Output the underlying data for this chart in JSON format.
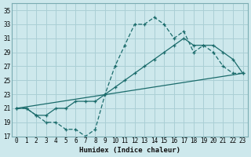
{
  "xlabel": "Humidex (Indice chaleur)",
  "bg_color": "#cde8ec",
  "grid_color": "#aacfd5",
  "line_color": "#1a6b6b",
  "xlim": [
    -0.5,
    23.5
  ],
  "ylim": [
    17,
    36
  ],
  "xticks": [
    0,
    1,
    2,
    3,
    4,
    5,
    6,
    7,
    8,
    9,
    10,
    11,
    12,
    13,
    14,
    15,
    16,
    17,
    18,
    19,
    20,
    21,
    22,
    23
  ],
  "yticks": [
    17,
    19,
    21,
    23,
    25,
    27,
    29,
    31,
    33,
    35
  ],
  "curve1_x": [
    0,
    1,
    2,
    3,
    4,
    5,
    6,
    7,
    8,
    9,
    10,
    11,
    12,
    13,
    14,
    15,
    16,
    17,
    18,
    19,
    20,
    21,
    22,
    23
  ],
  "curve1_y": [
    21,
    21,
    20,
    19,
    19,
    18,
    18,
    17,
    18,
    23,
    27,
    30,
    33,
    33,
    34,
    33,
    31,
    32,
    29,
    30,
    29,
    27,
    26,
    26
  ],
  "curve2_x": [
    0,
    1,
    2,
    3,
    4,
    5,
    6,
    7,
    8,
    9,
    10,
    11,
    12,
    13,
    14,
    15,
    16,
    17,
    18,
    19,
    20,
    21,
    22,
    23
  ],
  "curve2_y": [
    21,
    21,
    20,
    20,
    21,
    21,
    22,
    22,
    22,
    23,
    24,
    25,
    26,
    27,
    28,
    29,
    30,
    31,
    30,
    30,
    30,
    29,
    28,
    26
  ],
  "line3_x": [
    0,
    23
  ],
  "line3_y": [
    21,
    26
  ]
}
